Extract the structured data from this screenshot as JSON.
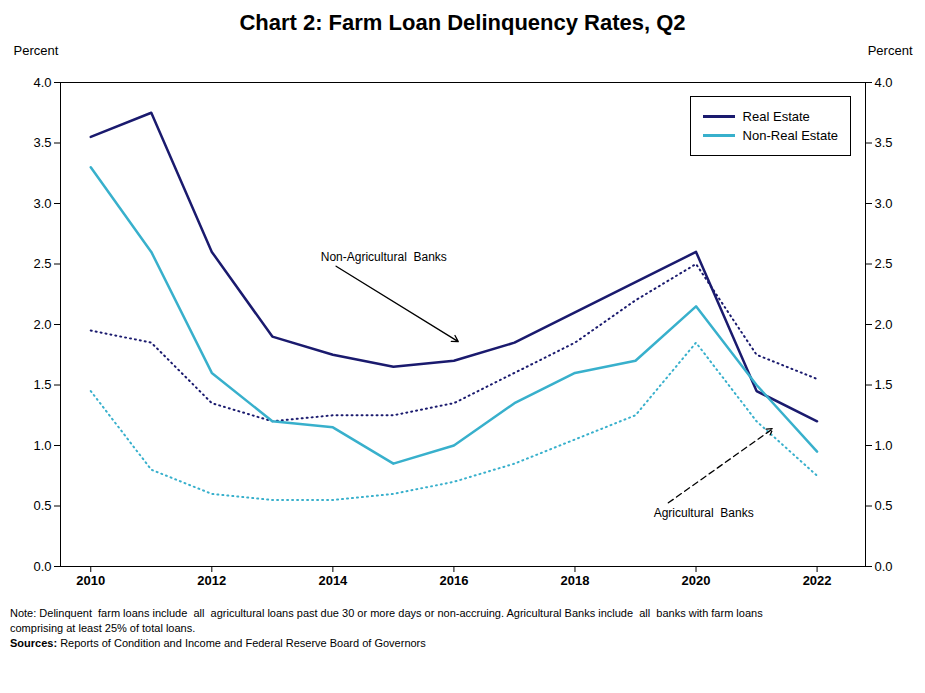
{
  "chart_data": {
    "type": "line",
    "title": "Chart 2: Farm Loan Delinquency Rates, Q2",
    "x": [
      2010,
      2011,
      2012,
      2013,
      2014,
      2015,
      2016,
      2017,
      2018,
      2019,
      2020,
      2021,
      2022
    ],
    "xlim": [
      2009.5,
      2022.8
    ],
    "xticks": [
      2010,
      2012,
      2014,
      2016,
      2018,
      2020,
      2022
    ],
    "ylim": [
      0.0,
      4.0
    ],
    "yticks": [
      {
        "value": 0.0,
        "label": "0.0"
      },
      0.5,
      {
        "value": 1.0,
        "label": "1.0"
      },
      1.5,
      {
        "value": 2.0,
        "label": "2.0"
      },
      2.5,
      {
        "value": 3.0,
        "label": "3.0"
      },
      3.5,
      {
        "value": 4.0,
        "label": "4.0"
      }
    ],
    "y2lim": [
      0.0,
      4.0
    ],
    "y2ticks": [
      {
        "value": 0.0,
        "label": "0.0"
      },
      0.5,
      {
        "value": 1.0,
        "label": "1.0"
      },
      1.5,
      {
        "value": 2.0,
        "label": "2.0"
      },
      2.5,
      {
        "value": 3.0,
        "label": "3.0"
      },
      3.5,
      {
        "value": 4.0,
        "label": "4.0"
      }
    ],
    "ylabel": "Percent",
    "y2label": "Percent",
    "grid": false,
    "legend": "upper right",
    "series": [
      {
        "name": "Real Estate",
        "color": "#1a1a6e",
        "line_style": "solid",
        "values": [
          3.55,
          3.75,
          2.6,
          1.9,
          1.75,
          1.65,
          1.7,
          1.85,
          2.1,
          2.35,
          2.6,
          1.45,
          1.2
        ]
      },
      {
        "name": "Non-Real Estate",
        "color": "#38b0cc",
        "line_style": "solid",
        "values": [
          3.3,
          2.6,
          1.6,
          1.2,
          1.15,
          0.85,
          1.0,
          1.35,
          1.6,
          1.7,
          2.15,
          1.5,
          0.95
        ]
      },
      {
        "name": "Real Estate",
        "color": "#1a1a6e",
        "line_style": "dotted",
        "values": [
          1.95,
          1.85,
          1.35,
          1.2,
          1.25,
          1.25,
          1.35,
          1.6,
          1.85,
          2.2,
          2.5,
          1.75,
          1.55
        ]
      },
      {
        "name": "Non-Real Estate",
        "color": "#38b0cc",
        "line_style": "dotted",
        "values": [
          1.45,
          0.8,
          0.6,
          0.55,
          0.55,
          0.6,
          0.7,
          0.85,
          1.05,
          1.25,
          1.85,
          1.2,
          0.75
        ]
      }
    ],
    "annotations": [
      {
        "text": "Non-Agricultural  Banks",
        "x": 2013.8,
        "y": 2.56,
        "arrow_x": 2016.1,
        "arrow_y": 1.85,
        "line_style": "solid"
      },
      {
        "text": "Agricultural  Banks",
        "x": 2019.3,
        "y": 0.44,
        "arrow_x": 2021.3,
        "arrow_y": 1.15,
        "line_style": "dashed"
      }
    ],
    "notes": [
      "Note: Delinquent  farm loans include  all  agricultural loans past due 30 or more days or non-accruing. Agricultural Banks include  all  banks with farm loans",
      "comprising at least 25% of total loans."
    ],
    "sources": "Sources: Reports of Condition and Income and Federal Reserve Board of Governors"
  }
}
